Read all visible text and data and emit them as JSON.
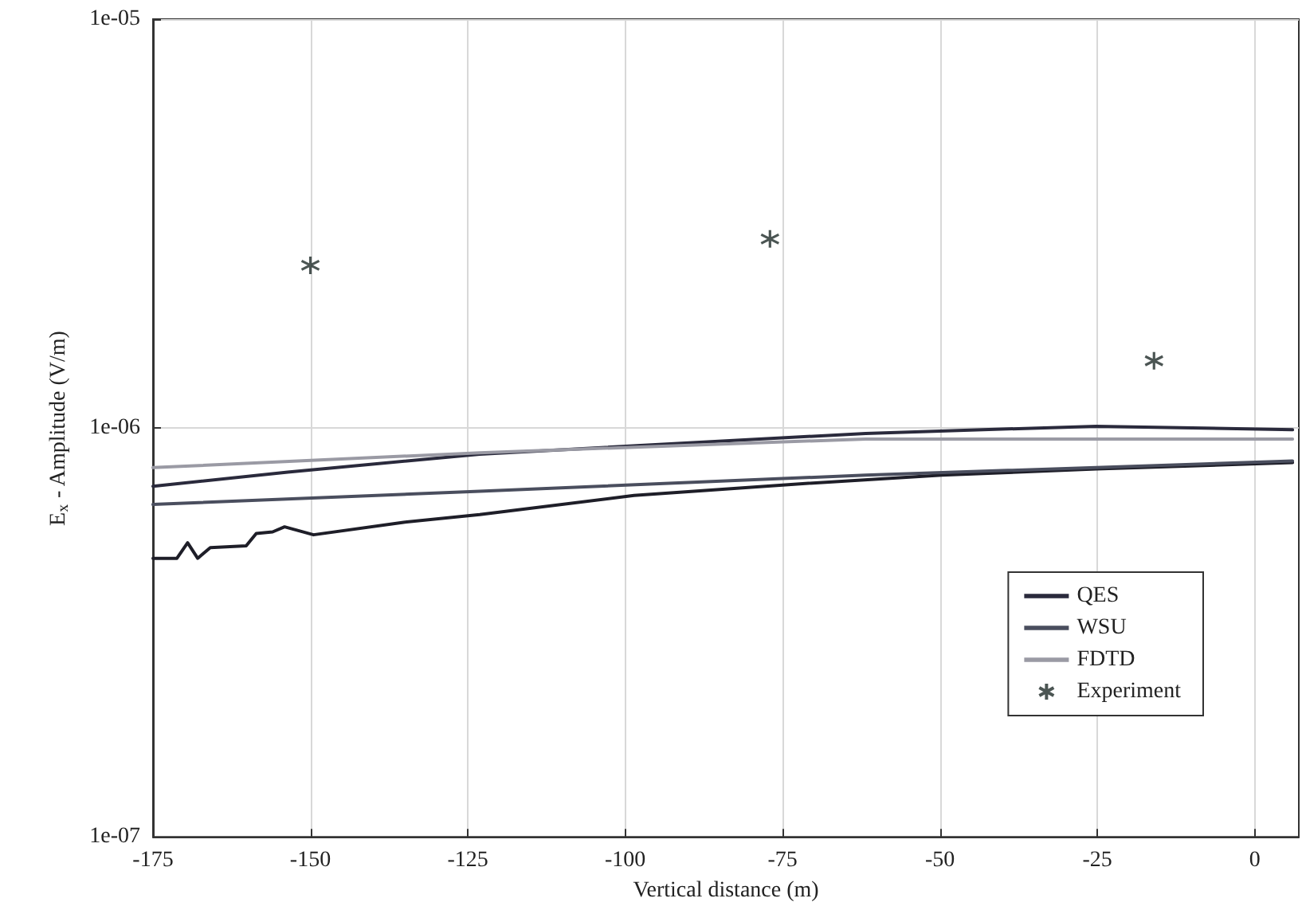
{
  "chart_data": {
    "type": "line",
    "xlabel": "Vertical distance (m)",
    "ylabel": "E$_{x}$ - Amplitude (V/m)",
    "xlim": [
      -175,
      7
    ],
    "xticks": [
      -175,
      -150,
      -125,
      -100,
      -75,
      -50,
      -25,
      0
    ],
    "ylim": [
      1e-07,
      1e-05
    ],
    "yticks": [
      {
        "value": 1e-07,
        "label": "1e-07"
      },
      {
        "value": 1e-06,
        "label": "1e-06"
      },
      {
        "value": 1e-05,
        "label": "1e-05"
      }
    ],
    "log": "y",
    "grid": true,
    "legend": "bottom right",
    "line_style": "solid",
    "series": [
      {
        "color": "#1e1e28",
        "marker": "none",
        "x": [
          -175,
          -171.2,
          -169.5,
          -167.9,
          -165.9,
          -160.2,
          -158.6,
          -156,
          -154.1,
          -149.5,
          -135.2,
          -123.1,
          -98.6,
          -74.1,
          -49.7,
          -25.2,
          6
        ],
        "values": [
          4.8e-07,
          4.8e-07,
          5.24e-07,
          4.8e-07,
          5.1e-07,
          5.15e-07,
          5.52e-07,
          5.57e-07,
          5.73e-07,
          5.48e-07,
          5.88e-07,
          6.14e-07,
          6.84e-07,
          7.27e-07,
          7.67e-07,
          7.94e-07,
          8.23e-07
        ]
      },
      {
        "name": "QES",
        "color": "#2a2a3c",
        "marker": "none",
        "x": [
          -175,
          -153.6,
          -123.1,
          -61.8,
          -25.2,
          6
        ],
        "values": [
          7.2e-07,
          7.8e-07,
          8.63e-07,
          9.7e-07,
          1.01e-06,
          9.9e-07
        ]
      },
      {
        "name": "WSU",
        "color": "#4a4e5e",
        "marker": "none",
        "x": [
          -175,
          -123.1,
          -61.8,
          6
        ],
        "values": [
          6.5e-07,
          7e-07,
          7.67e-07,
          8.3e-07
        ]
      },
      {
        "name": "FDTD",
        "color": "#9a9aa4",
        "marker": "none",
        "x": [
          -175,
          -123.1,
          -61.8,
          6
        ],
        "values": [
          8e-07,
          8.7e-07,
          9.4e-07,
          9.4e-07
        ]
      },
      {
        "name": "Experiment",
        "type": "scatter",
        "color": "#1e2a28",
        "marker": "cross",
        "x": [
          -150,
          -77,
          -16
        ],
        "values": [
          2.5e-06,
          2.9e-06,
          1.46e-06
        ]
      }
    ]
  }
}
